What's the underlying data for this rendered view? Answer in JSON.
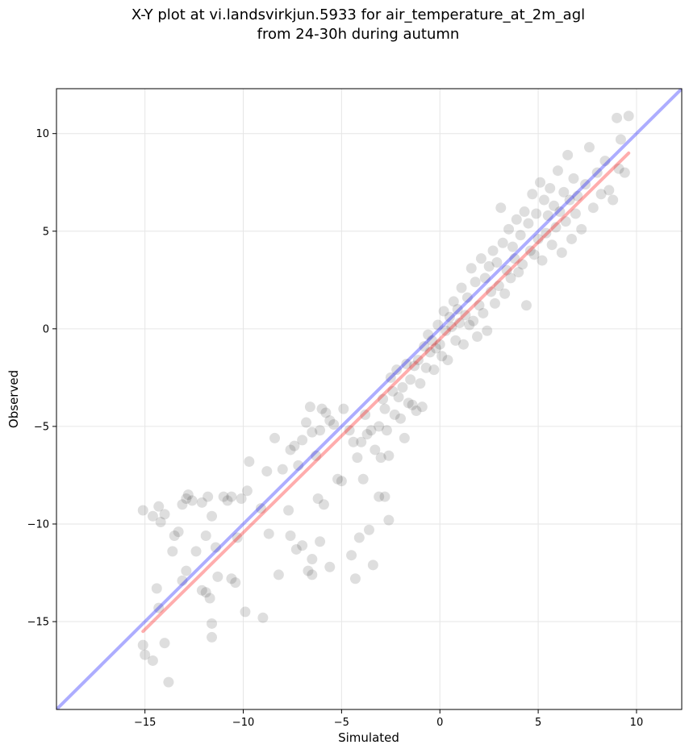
{
  "chart_data": {
    "type": "scatter",
    "title_line1": "X-Y plot at vi.landsvirkjun.5933 for air_temperature_at_2m_agl",
    "title_line2": "from 24-30h during autumn",
    "xlabel": "Simulated",
    "ylabel": "Observed",
    "xlim": [
      -19.5,
      12.3
    ],
    "ylim": [
      -19.5,
      12.3
    ],
    "xticks": [
      -15,
      -10,
      -5,
      0,
      5,
      10
    ],
    "yticks": [
      -15,
      -10,
      -5,
      0,
      5,
      10
    ],
    "grid": true,
    "point_color": "#000000",
    "identity_line": {
      "color": "#0000ff",
      "points": [
        [
          -19.5,
          -19.5
        ],
        [
          12.3,
          12.3
        ]
      ]
    },
    "fit_line": {
      "color": "#ff0000",
      "points": [
        [
          -15.1,
          -15.5
        ],
        [
          9.6,
          9.0
        ]
      ]
    },
    "points": [
      [
        -15.1,
        -9.3
      ],
      [
        -14.6,
        -9.6
      ],
      [
        -14.3,
        -9.1
      ],
      [
        -14.2,
        -9.9
      ],
      [
        -14.0,
        -9.5
      ],
      [
        -13.6,
        -11.4
      ],
      [
        -13.5,
        -10.6
      ],
      [
        -13.3,
        -10.4
      ],
      [
        -13.1,
        -9.0
      ],
      [
        -12.9,
        -8.7
      ],
      [
        -12.8,
        -8.5
      ],
      [
        -12.6,
        -8.8
      ],
      [
        -12.4,
        -11.4
      ],
      [
        -12.1,
        -8.9
      ],
      [
        -11.9,
        -10.6
      ],
      [
        -11.8,
        -8.6
      ],
      [
        -11.6,
        -9.6
      ],
      [
        -11.4,
        -11.2
      ],
      [
        -11.0,
        -8.6
      ],
      [
        -10.8,
        -8.8
      ],
      [
        -10.6,
        -8.6
      ],
      [
        -10.3,
        -10.7
      ],
      [
        -10.1,
        -8.7
      ],
      [
        -9.8,
        -8.3
      ],
      [
        -9.7,
        -6.8
      ],
      [
        -9.1,
        -9.2
      ],
      [
        -8.8,
        -7.3
      ],
      [
        -8.4,
        -5.6
      ],
      [
        -8.0,
        -7.2
      ],
      [
        -7.7,
        -9.3
      ],
      [
        -7.6,
        -6.2
      ],
      [
        -7.4,
        -6.0
      ],
      [
        -7.2,
        -7.0
      ],
      [
        -7.0,
        -5.7
      ],
      [
        -6.8,
        -4.8
      ],
      [
        -6.6,
        -4.0
      ],
      [
        -6.5,
        -5.3
      ],
      [
        -6.3,
        -6.5
      ],
      [
        -6.1,
        -5.2
      ],
      [
        -6.0,
        -4.1
      ],
      [
        -5.8,
        -4.3
      ],
      [
        -5.6,
        -4.7
      ],
      [
        -5.4,
        -4.9
      ],
      [
        -5.2,
        -7.7
      ],
      [
        -5.0,
        -7.8
      ],
      [
        -4.9,
        -4.1
      ],
      [
        -4.6,
        -5.2
      ],
      [
        -4.4,
        -5.8
      ],
      [
        -4.2,
        -6.6
      ],
      [
        -4.0,
        -5.8
      ],
      [
        -3.8,
        -4.4
      ],
      [
        -3.7,
        -5.4
      ],
      [
        -3.5,
        -5.2
      ],
      [
        -3.3,
        -6.2
      ],
      [
        -3.1,
        -5.0
      ],
      [
        -3.0,
        -6.6
      ],
      [
        -2.9,
        -3.6
      ],
      [
        -2.8,
        -4.1
      ],
      [
        -2.7,
        -5.2
      ],
      [
        -2.6,
        -6.5
      ],
      [
        -2.5,
        -2.5
      ],
      [
        -2.4,
        -3.2
      ],
      [
        -2.3,
        -4.4
      ],
      [
        -2.2,
        -2.1
      ],
      [
        -2.1,
        -3.5
      ],
      [
        -2.0,
        -4.6
      ],
      [
        -1.9,
        -3.0
      ],
      [
        -1.8,
        -5.6
      ],
      [
        -1.7,
        -1.8
      ],
      [
        -1.6,
        -3.8
      ],
      [
        -1.5,
        -2.6
      ],
      [
        -1.4,
        -3.9
      ],
      [
        -1.3,
        -1.9
      ],
      [
        -1.2,
        -4.2
      ],
      [
        -1.1,
        -1.6
      ],
      [
        -1.0,
        -2.8
      ],
      [
        -0.9,
        -4.0
      ],
      [
        -0.8,
        -0.9
      ],
      [
        -0.7,
        -2.0
      ],
      [
        -0.6,
        -0.3
      ],
      [
        -0.5,
        -1.2
      ],
      [
        -0.4,
        -0.6
      ],
      [
        -0.3,
        -2.1
      ],
      [
        -0.2,
        -1.0
      ],
      [
        -0.1,
        0.2
      ],
      [
        0.0,
        -0.8
      ],
      [
        0.1,
        -1.4
      ],
      [
        0.2,
        0.9
      ],
      [
        0.3,
        -0.1
      ],
      [
        0.4,
        -1.6
      ],
      [
        0.5,
        0.6
      ],
      [
        0.6,
        0.1
      ],
      [
        0.7,
        1.4
      ],
      [
        0.8,
        -0.6
      ],
      [
        0.9,
        1.0
      ],
      [
        1.0,
        0.3
      ],
      [
        1.1,
        2.1
      ],
      [
        1.2,
        -0.8
      ],
      [
        1.3,
        0.7
      ],
      [
        1.4,
        1.6
      ],
      [
        1.5,
        0.2
      ],
      [
        1.6,
        3.1
      ],
      [
        1.7,
        0.4
      ],
      [
        1.8,
        2.4
      ],
      [
        1.9,
        -0.4
      ],
      [
        2.0,
        1.2
      ],
      [
        2.1,
        3.6
      ],
      [
        2.2,
        0.8
      ],
      [
        2.3,
        2.6
      ],
      [
        2.4,
        -0.1
      ],
      [
        2.5,
        3.2
      ],
      [
        2.6,
        1.9
      ],
      [
        2.7,
        4.0
      ],
      [
        2.8,
        1.3
      ],
      [
        2.9,
        3.4
      ],
      [
        3.0,
        2.2
      ],
      [
        3.1,
        6.2
      ],
      [
        3.2,
        4.4
      ],
      [
        3.3,
        1.8
      ],
      [
        3.4,
        3.0
      ],
      [
        3.5,
        5.1
      ],
      [
        3.6,
        2.6
      ],
      [
        3.7,
        4.2
      ],
      [
        3.8,
        3.6
      ],
      [
        3.9,
        5.6
      ],
      [
        4.0,
        2.9
      ],
      [
        4.1,
        4.8
      ],
      [
        4.2,
        3.3
      ],
      [
        4.3,
        6.0
      ],
      [
        4.4,
        1.2
      ],
      [
        4.5,
        5.4
      ],
      [
        4.6,
        4.0
      ],
      [
        4.7,
        6.9
      ],
      [
        4.8,
        3.8
      ],
      [
        4.9,
        5.9
      ],
      [
        5.0,
        4.6
      ],
      [
        5.1,
        7.5
      ],
      [
        5.2,
        3.5
      ],
      [
        5.3,
        6.6
      ],
      [
        5.4,
        4.9
      ],
      [
        5.5,
        5.8
      ],
      [
        5.6,
        7.2
      ],
      [
        5.7,
        4.3
      ],
      [
        5.8,
        6.3
      ],
      [
        5.9,
        5.2
      ],
      [
        6.0,
        8.1
      ],
      [
        6.1,
        6.0
      ],
      [
        6.2,
        3.9
      ],
      [
        6.3,
        7.0
      ],
      [
        6.4,
        5.5
      ],
      [
        6.5,
        8.9
      ],
      [
        6.6,
        6.6
      ],
      [
        6.7,
        4.6
      ],
      [
        6.8,
        7.7
      ],
      [
        6.9,
        5.9
      ],
      [
        7.0,
        6.8
      ],
      [
        7.2,
        5.1
      ],
      [
        7.4,
        7.4
      ],
      [
        7.6,
        9.3
      ],
      [
        7.8,
        6.2
      ],
      [
        8.0,
        8.0
      ],
      [
        8.2,
        6.9
      ],
      [
        8.4,
        8.6
      ],
      [
        8.6,
        7.1
      ],
      [
        8.8,
        6.6
      ],
      [
        9.0,
        10.8
      ],
      [
        9.1,
        8.2
      ],
      [
        9.2,
        9.7
      ],
      [
        9.4,
        8.0
      ],
      [
        9.6,
        10.9
      ],
      [
        -14.4,
        -13.3
      ],
      [
        -14.3,
        -14.3
      ],
      [
        -14.0,
        -16.1
      ],
      [
        -13.8,
        -18.1
      ],
      [
        -14.6,
        -17.0
      ],
      [
        -15.1,
        -16.2
      ],
      [
        -15.0,
        -16.7
      ],
      [
        -13.1,
        -12.9
      ],
      [
        -12.9,
        -12.4
      ],
      [
        -12.1,
        -13.4
      ],
      [
        -11.7,
        -13.8
      ],
      [
        -11.6,
        -15.1
      ],
      [
        -11.6,
        -15.8
      ],
      [
        -11.9,
        -13.5
      ],
      [
        -11.3,
        -12.7
      ],
      [
        -10.6,
        -12.8
      ],
      [
        -10.4,
        -13.0
      ],
      [
        -9.9,
        -14.5
      ],
      [
        -9.0,
        -14.8
      ],
      [
        -8.7,
        -10.5
      ],
      [
        -8.2,
        -12.6
      ],
      [
        -7.6,
        -10.6
      ],
      [
        -7.3,
        -11.3
      ],
      [
        -7.0,
        -11.1
      ],
      [
        -6.7,
        -12.4
      ],
      [
        -6.5,
        -11.8
      ],
      [
        -6.5,
        -12.6
      ],
      [
        -6.1,
        -10.9
      ],
      [
        -5.6,
        -12.2
      ],
      [
        -5.9,
        -9.0
      ],
      [
        -6.2,
        -8.7
      ],
      [
        -4.5,
        -11.6
      ],
      [
        -4.3,
        -12.8
      ],
      [
        -4.1,
        -10.7
      ],
      [
        -3.9,
        -7.7
      ],
      [
        -3.6,
        -10.3
      ],
      [
        -3.4,
        -12.1
      ],
      [
        -3.1,
        -8.6
      ],
      [
        -2.8,
        -8.6
      ],
      [
        -2.6,
        -9.8
      ]
    ]
  }
}
